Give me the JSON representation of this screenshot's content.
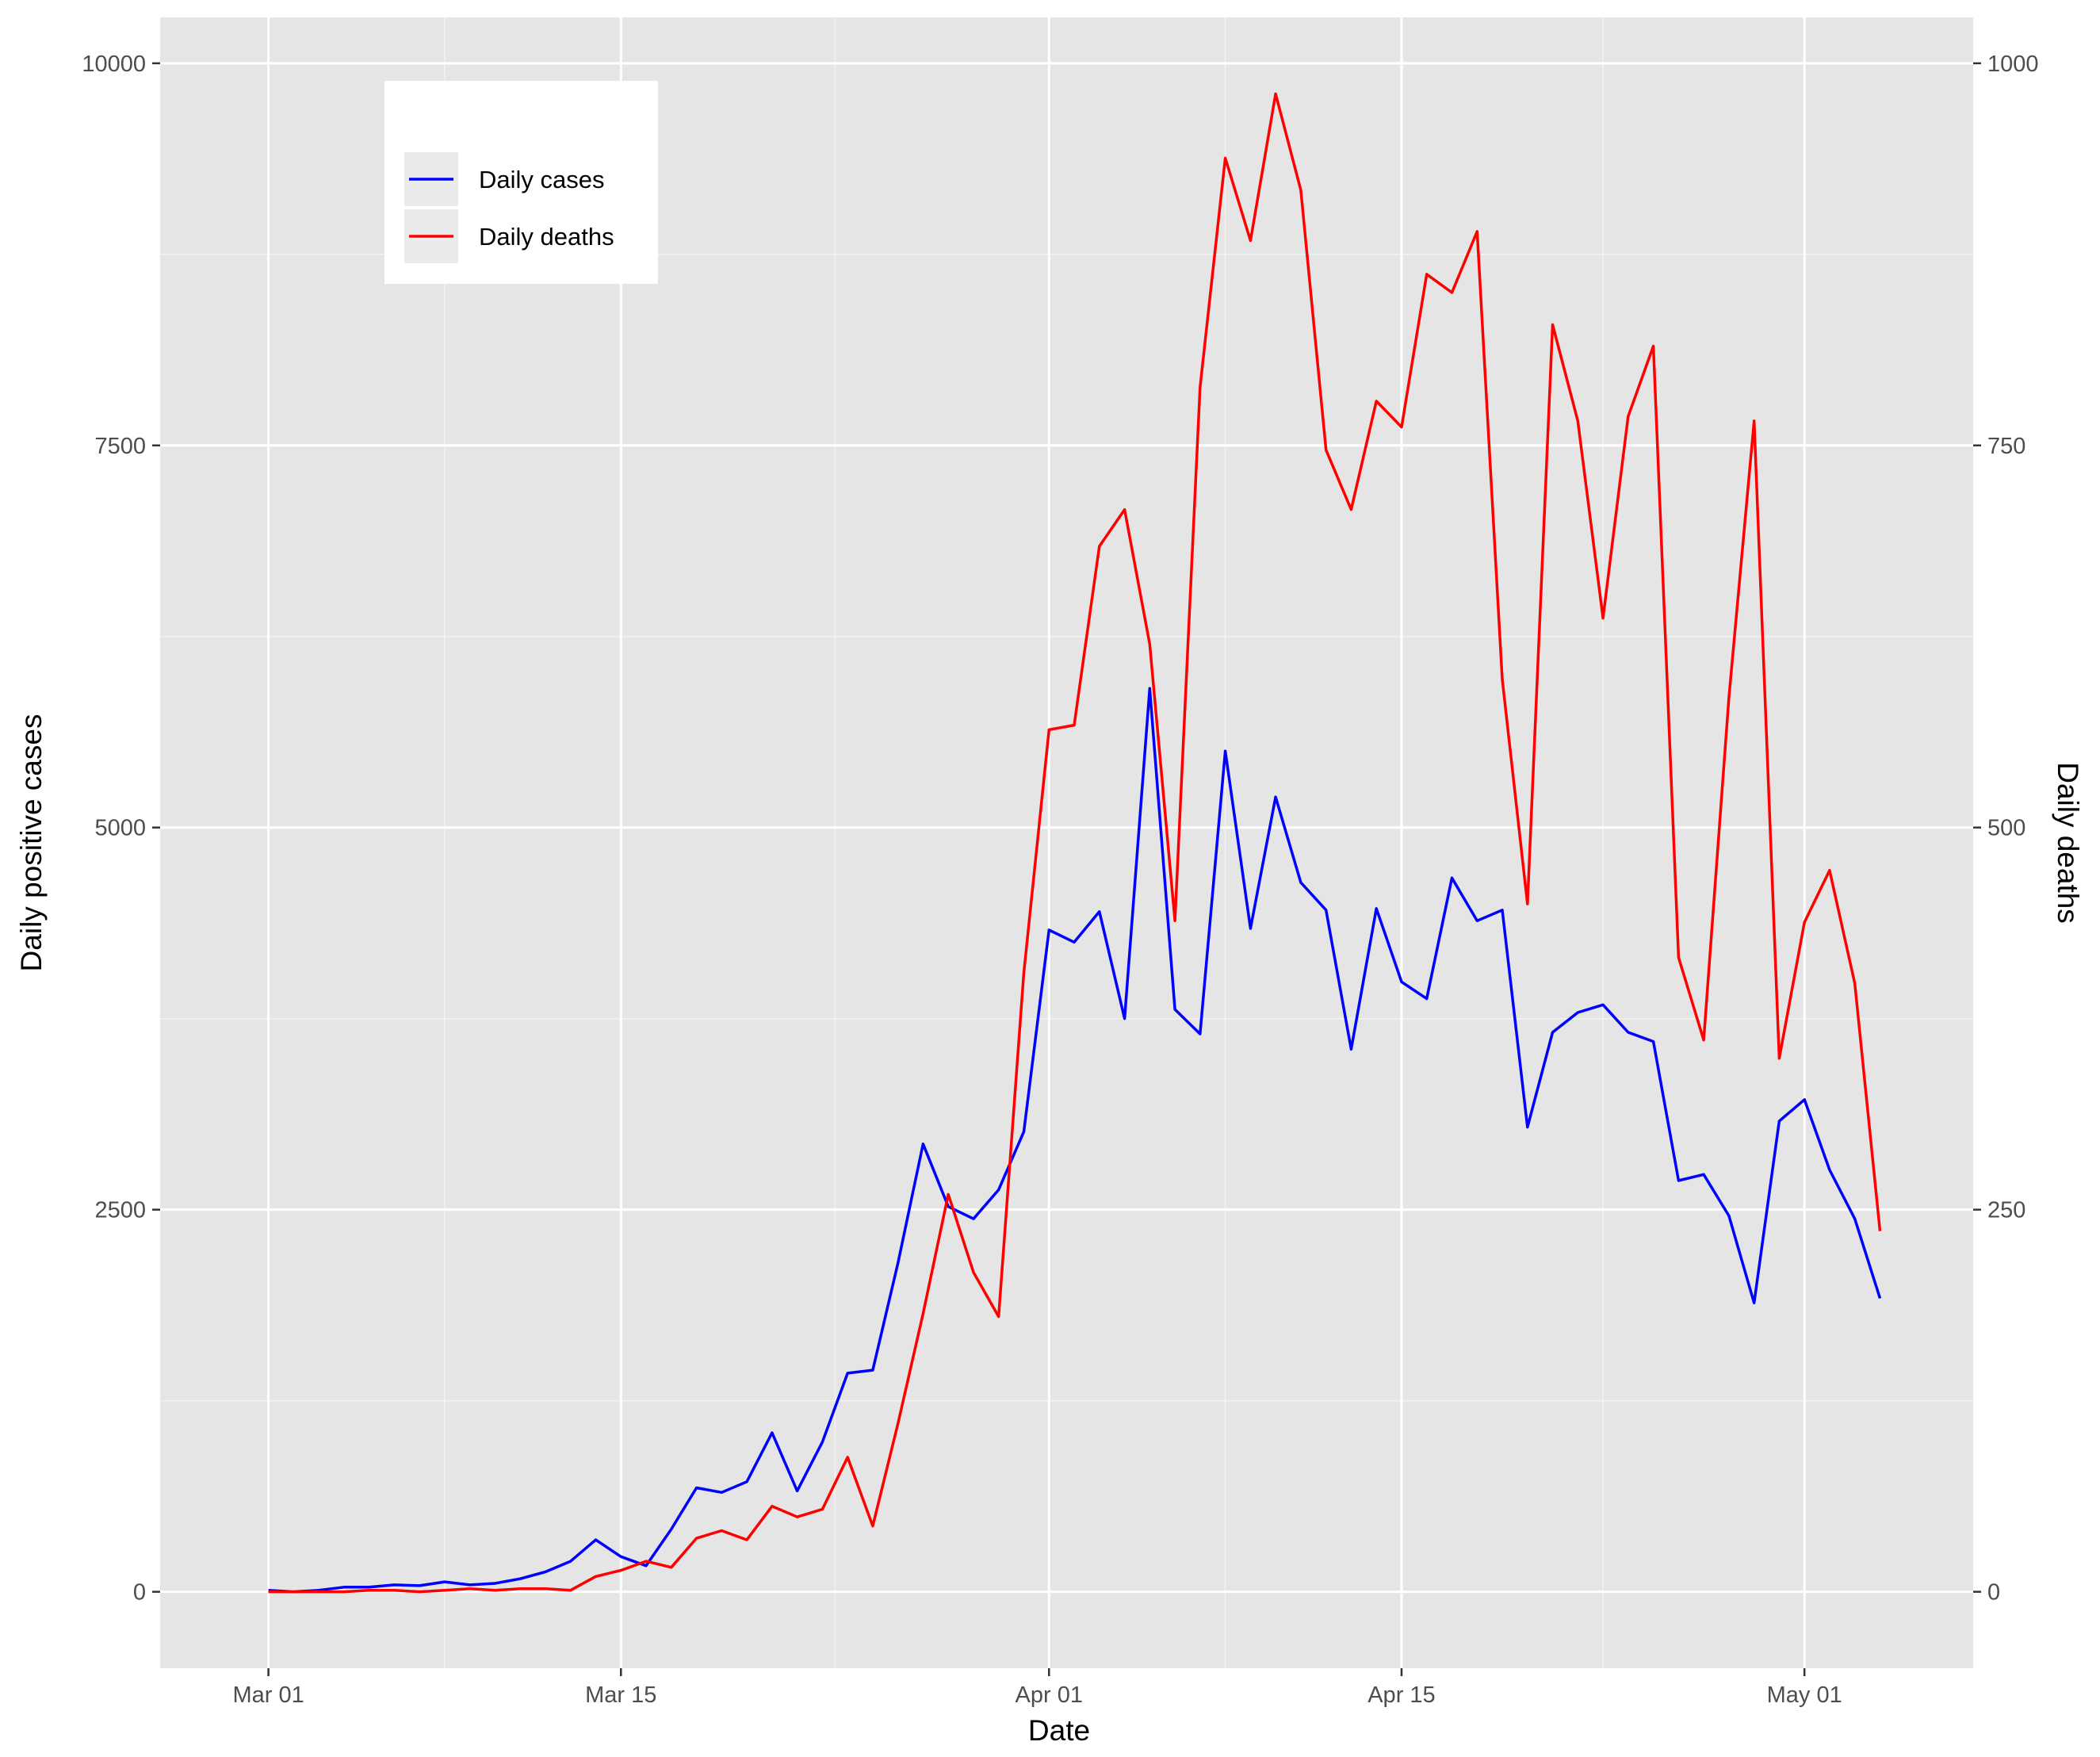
{
  "chart_data": {
    "type": "line",
    "xlabel": "Date",
    "ylabel": "Daily positive cases",
    "y2label": "Daily deaths",
    "x_ticks": [
      "Mar 01",
      "Mar 15",
      "Apr 01",
      "Apr 15",
      "May 01"
    ],
    "x_tick_days": [
      0,
      14,
      31,
      45,
      61
    ],
    "y_ticks": [
      "0",
      "2500",
      "5000",
      "7500",
      "10000"
    ],
    "y2_ticks": [
      "0",
      "250",
      "500",
      "750",
      "1000"
    ],
    "xlim_days": [
      -4.3,
      67.7
    ],
    "ylim": [
      -500,
      10300
    ],
    "y2lim": [
      -50,
      1030
    ],
    "grid": true,
    "legend_position": "top-left",
    "series": [
      {
        "name": "Daily cases",
        "color": "#0000ff",
        "axis": "left",
        "x_days": [
          0,
          1,
          2,
          3,
          4,
          5,
          6,
          7,
          8,
          9,
          10,
          11,
          12,
          13,
          14,
          15,
          16,
          17,
          18,
          19,
          20,
          21,
          22,
          23,
          24,
          25,
          26,
          27,
          28,
          29,
          30,
          31,
          32,
          33,
          34,
          35,
          36,
          37,
          38,
          39,
          40,
          41,
          42,
          43,
          44,
          45,
          46,
          47,
          48,
          49,
          50,
          51,
          52,
          53,
          54,
          55,
          56,
          57,
          58,
          59,
          60,
          61,
          62,
          63,
          64
        ],
        "values": [
          10,
          0,
          10,
          30,
          30,
          45,
          40,
          65,
          45,
          55,
          85,
          130,
          200,
          340,
          230,
          170,
          410,
          680,
          650,
          720,
          1040,
          660,
          980,
          1430,
          1450,
          2150,
          2930,
          2520,
          2440,
          2630,
          3010,
          4330,
          4250,
          4450,
          3750,
          5910,
          3810,
          3650,
          5500,
          4340,
          5200,
          4640,
          4460,
          3550,
          4470,
          3990,
          3880,
          4670,
          4390,
          4460,
          3040,
          3660,
          3790,
          3840,
          3660,
          3600,
          2690,
          2730,
          2460,
          1890,
          3080,
          3220,
          2760,
          2440,
          1920
        ]
      },
      {
        "name": "Daily deaths",
        "color": "#ff0000",
        "axis": "right",
        "x_days": [
          0,
          1,
          2,
          3,
          4,
          5,
          6,
          7,
          8,
          9,
          10,
          11,
          12,
          13,
          14,
          15,
          16,
          17,
          18,
          19,
          20,
          21,
          22,
          23,
          24,
          25,
          26,
          27,
          28,
          29,
          30,
          31,
          32,
          33,
          34,
          35,
          36,
          37,
          38,
          39,
          40,
          41,
          42,
          43,
          44,
          45,
          46,
          47,
          48,
          49,
          50,
          51,
          52,
          53,
          54,
          55,
          56,
          57,
          58,
          59,
          60,
          61,
          62,
          63,
          64
        ],
        "values": [
          0,
          0,
          0,
          0,
          1,
          1,
          0,
          1,
          2,
          1,
          2,
          2,
          1,
          10,
          14,
          20,
          16,
          35,
          40,
          34,
          56,
          49,
          54,
          88,
          43,
          110,
          182,
          260,
          209,
          180,
          405,
          564,
          567,
          684,
          708,
          620,
          439,
          788,
          938,
          884,
          980,
          917,
          747,
          708,
          779,
          762,
          862,
          850,
          890,
          597,
          450,
          829,
          766,
          637,
          769,
          815,
          415,
          361,
          585,
          766,
          349,
          438,
          472,
          398,
          236
        ]
      }
    ]
  }
}
